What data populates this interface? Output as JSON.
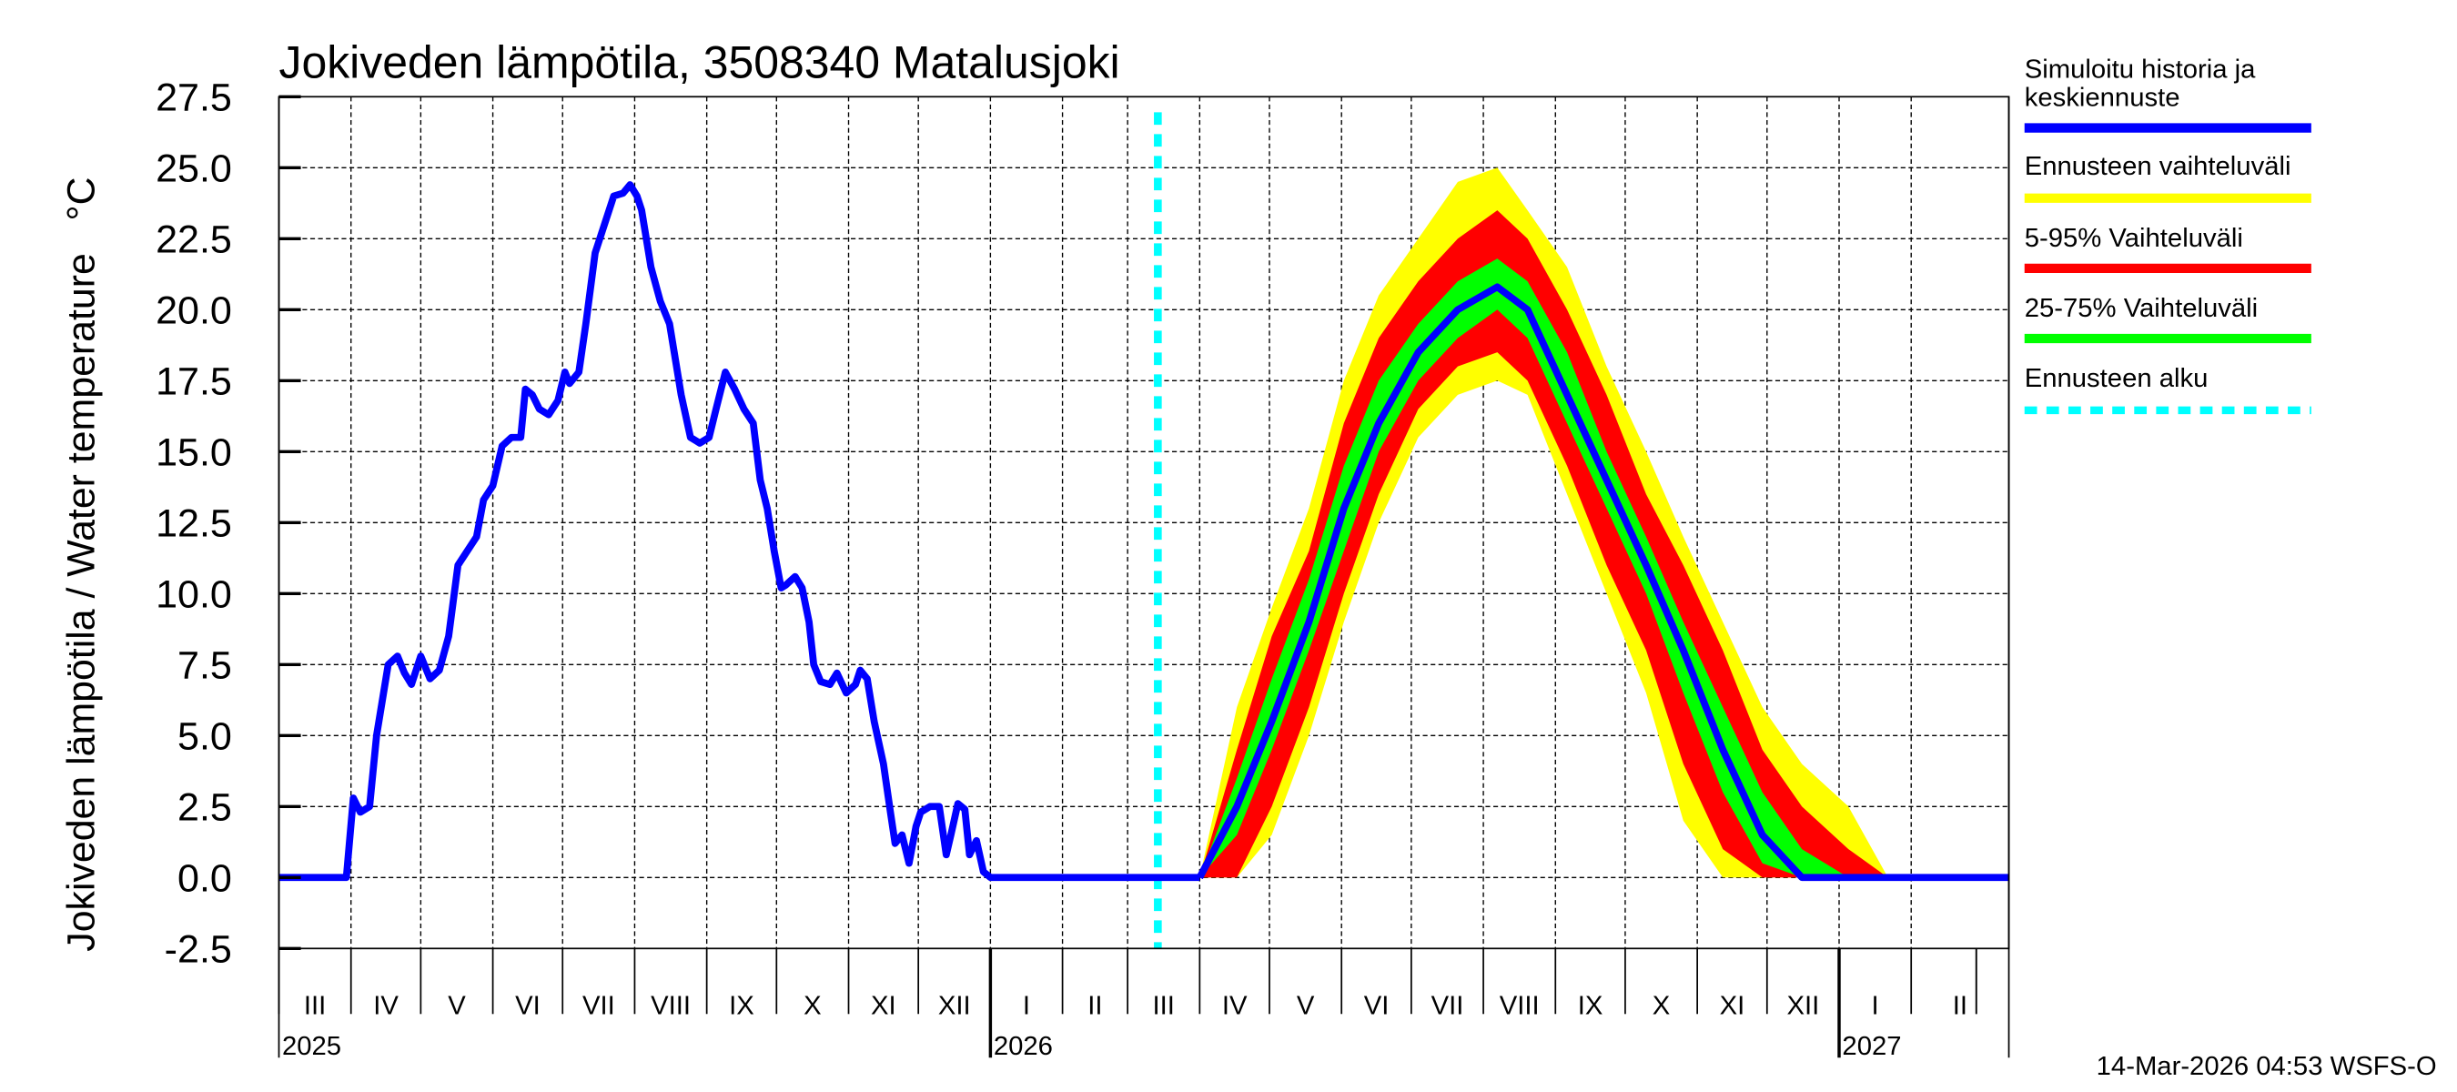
{
  "chart_data": {
    "type": "line",
    "title": "Jokiveden lämpötila, 3508340 Matalusjoki",
    "ylabel": "Jokiveden lämpötila / Water temperature   °C",
    "xlabel": "",
    "xlim": [
      "2025-03-01",
      "2027-03-15"
    ],
    "ylim": [
      -2.5,
      27.5
    ],
    "yticks": [
      "-2.5",
      "0.0",
      "2.5",
      "5.0",
      "7.5",
      "10.0",
      "12.5",
      "15.0",
      "17.5",
      "20.0",
      "22.5",
      "25.0",
      "27.5"
    ],
    "grid": true,
    "legend_placement": "right",
    "month_labels": [
      {
        "label": "III",
        "month": "2025-03"
      },
      {
        "label": "IV",
        "month": "2025-04"
      },
      {
        "label": "V",
        "month": "2025-05"
      },
      {
        "label": "VI",
        "month": "2025-06"
      },
      {
        "label": "VII",
        "month": "2025-07"
      },
      {
        "label": "VIII",
        "month": "2025-08"
      },
      {
        "label": "IX",
        "month": "2025-09"
      },
      {
        "label": "X",
        "month": "2025-10"
      },
      {
        "label": "XI",
        "month": "2025-11"
      },
      {
        "label": "XII",
        "month": "2025-12"
      },
      {
        "label": "I",
        "month": "2026-01"
      },
      {
        "label": "II",
        "month": "2026-02"
      },
      {
        "label": "III",
        "month": "2026-03"
      },
      {
        "label": "IV",
        "month": "2026-04"
      },
      {
        "label": "V",
        "month": "2026-05"
      },
      {
        "label": "VI",
        "month": "2026-06"
      },
      {
        "label": "VII",
        "month": "2026-07"
      },
      {
        "label": "VIII",
        "month": "2026-08"
      },
      {
        "label": "IX",
        "month": "2026-09"
      },
      {
        "label": "X",
        "month": "2026-10"
      },
      {
        "label": "XI",
        "month": "2026-11"
      },
      {
        "label": "XII",
        "month": "2026-12"
      },
      {
        "label": "I",
        "month": "2027-01"
      },
      {
        "label": "II",
        "month": "2027-02"
      }
    ],
    "year_labels": [
      {
        "label": "2025",
        "date": "2025-03-01"
      },
      {
        "label": "2026",
        "date": "2026-01-01"
      },
      {
        "label": "2027",
        "date": "2027-01-01"
      }
    ],
    "forecast_start": "2026-03-14",
    "colors": {
      "history": "#0000ff",
      "range": "#ffff00",
      "p5_95": "#ff0000",
      "p25_75": "#00ff00",
      "forecast_start": "#00ffff"
    },
    "legend": [
      {
        "label": "Simuloitu historia ja keskiennuste",
        "lines": [
          "Simuloitu historia ja",
          "keskiennuste"
        ],
        "color": "#0000ff",
        "style": "solid"
      },
      {
        "label": "Ennusteen vaihteluväli",
        "lines": [
          "Ennusteen vaihteluväli"
        ],
        "color": "#ffff00",
        "style": "solid"
      },
      {
        "label": "5-95% Vaihteluväli",
        "lines": [
          "5-95% Vaihteluväli"
        ],
        "color": "#ff0000",
        "style": "solid"
      },
      {
        "label": "25-75% Vaihteluväli",
        "lines": [
          "25-75% Vaihteluväli"
        ],
        "color": "#00ff00",
        "style": "solid"
      },
      {
        "label": "Ennusteen alku",
        "lines": [
          "Ennusteen alku"
        ],
        "color": "#00ffff",
        "style": "dashed"
      }
    ],
    "history": [
      [
        "2025-03-01",
        0
      ],
      [
        "2025-03-30",
        0
      ],
      [
        "2025-04-02",
        2.8
      ],
      [
        "2025-04-05",
        2.3
      ],
      [
        "2025-04-09",
        2.5
      ],
      [
        "2025-04-12",
        5.0
      ],
      [
        "2025-04-17",
        7.5
      ],
      [
        "2025-04-21",
        7.8
      ],
      [
        "2025-04-24",
        7.2
      ],
      [
        "2025-04-27",
        6.8
      ],
      [
        "2025-05-01",
        7.8
      ],
      [
        "2025-05-05",
        7.0
      ],
      [
        "2025-05-09",
        7.3
      ],
      [
        "2025-05-13",
        8.5
      ],
      [
        "2025-05-17",
        11.0
      ],
      [
        "2025-05-21",
        11.5
      ],
      [
        "2025-05-25",
        12.0
      ],
      [
        "2025-05-28",
        13.3
      ],
      [
        "2025-06-01",
        13.8
      ],
      [
        "2025-06-05",
        15.2
      ],
      [
        "2025-06-09",
        15.5
      ],
      [
        "2025-06-13",
        15.5
      ],
      [
        "2025-06-15",
        17.2
      ],
      [
        "2025-06-18",
        17.0
      ],
      [
        "2025-06-21",
        16.5
      ],
      [
        "2025-06-25",
        16.3
      ],
      [
        "2025-06-29",
        16.8
      ],
      [
        "2025-07-02",
        17.8
      ],
      [
        "2025-07-04",
        17.4
      ],
      [
        "2025-07-08",
        17.8
      ],
      [
        "2025-07-11",
        19.5
      ],
      [
        "2025-07-15",
        22.0
      ],
      [
        "2025-07-19",
        23.0
      ],
      [
        "2025-07-23",
        24.0
      ],
      [
        "2025-07-27",
        24.1
      ],
      [
        "2025-07-30",
        24.4
      ],
      [
        "2025-08-02",
        24.0
      ],
      [
        "2025-08-04",
        23.5
      ],
      [
        "2025-08-08",
        21.5
      ],
      [
        "2025-08-12",
        20.3
      ],
      [
        "2025-08-16",
        19.5
      ],
      [
        "2025-08-21",
        17.0
      ],
      [
        "2025-08-25",
        15.5
      ],
      [
        "2025-08-29",
        15.3
      ],
      [
        "2025-09-02",
        15.5
      ],
      [
        "2025-09-05",
        16.5
      ],
      [
        "2025-09-09",
        17.8
      ],
      [
        "2025-09-13",
        17.2
      ],
      [
        "2025-09-17",
        16.5
      ],
      [
        "2025-09-21",
        16.0
      ],
      [
        "2025-09-24",
        14.0
      ],
      [
        "2025-09-27",
        13.0
      ],
      [
        "2025-09-30",
        11.5
      ],
      [
        "2025-10-03",
        10.2
      ],
      [
        "2025-10-05",
        10.3
      ],
      [
        "2025-10-09",
        10.6
      ],
      [
        "2025-10-12",
        10.2
      ],
      [
        "2025-10-15",
        9.0
      ],
      [
        "2025-10-17",
        7.5
      ],
      [
        "2025-10-20",
        6.9
      ],
      [
        "2025-10-24",
        6.8
      ],
      [
        "2025-10-27",
        7.2
      ],
      [
        "2025-10-31",
        6.5
      ],
      [
        "2025-11-04",
        6.8
      ],
      [
        "2025-11-06",
        7.3
      ],
      [
        "2025-11-09",
        7.0
      ],
      [
        "2025-11-12",
        5.5
      ],
      [
        "2025-11-16",
        4.0
      ],
      [
        "2025-11-19",
        2.3
      ],
      [
        "2025-11-21",
        1.2
      ],
      [
        "2025-11-24",
        1.5
      ],
      [
        "2025-11-27",
        0.5
      ],
      [
        "2025-11-30",
        1.8
      ],
      [
        "2025-12-02",
        2.3
      ],
      [
        "2025-12-06",
        2.5
      ],
      [
        "2025-12-10",
        2.5
      ],
      [
        "2025-12-13",
        0.8
      ],
      [
        "2025-12-15",
        1.5
      ],
      [
        "2025-12-18",
        2.6
      ],
      [
        "2025-12-21",
        2.4
      ],
      [
        "2025-12-23",
        0.8
      ],
      [
        "2025-12-26",
        1.3
      ],
      [
        "2025-12-29",
        0.2
      ],
      [
        "2026-01-01",
        0
      ],
      [
        "2026-04-01",
        0
      ]
    ],
    "forecast": {
      "columns": [
        "date",
        "median",
        "p25",
        "p75",
        "p5",
        "p95",
        "min",
        "max"
      ],
      "rows": [
        [
          "2026-04-01",
          0,
          0,
          0,
          0,
          0,
          0,
          0
        ],
        [
          "2026-04-17",
          2.5,
          1.5,
          3.5,
          0,
          4.5,
          0,
          6
        ],
        [
          "2026-05-02",
          5.5,
          4.5,
          7,
          2.5,
          8.5,
          1.5,
          9.5
        ],
        [
          "2026-05-18",
          9,
          8,
          10.5,
          6,
          11.5,
          5,
          13
        ],
        [
          "2026-06-02",
          13,
          11.5,
          14.5,
          10,
          16,
          9,
          17.5
        ],
        [
          "2026-06-17",
          16,
          15,
          17.5,
          13.5,
          19,
          12.5,
          20.5
        ],
        [
          "2026-07-04",
          18.5,
          17.5,
          19.5,
          16.5,
          21,
          15.5,
          22.5
        ],
        [
          "2026-07-21",
          20,
          19,
          21,
          18,
          22.5,
          17,
          24.5
        ],
        [
          "2026-08-07",
          20.8,
          20,
          21.8,
          18.5,
          23.5,
          17.5,
          25
        ],
        [
          "2026-08-20",
          20,
          19,
          21,
          17.5,
          22.5,
          17,
          23.5
        ],
        [
          "2026-09-06",
          17,
          16,
          18.5,
          14.5,
          20,
          13.5,
          21.5
        ],
        [
          "2026-09-23",
          14,
          13,
          15,
          11,
          17,
          10,
          18
        ],
        [
          "2026-10-10",
          11,
          10,
          12,
          8,
          13.5,
          6.5,
          15
        ],
        [
          "2026-10-26",
          8,
          6.5,
          9,
          4,
          11,
          2,
          12
        ],
        [
          "2026-11-12",
          4.5,
          3,
          6,
          1,
          8,
          0,
          9
        ],
        [
          "2026-11-29",
          1.5,
          0.5,
          3,
          0,
          4.5,
          0,
          6
        ],
        [
          "2026-12-16",
          0,
          0,
          1,
          0,
          2.5,
          0,
          4
        ],
        [
          "2027-01-05",
          0,
          0,
          0,
          0,
          1,
          0,
          2.5
        ],
        [
          "2027-01-22",
          0,
          0,
          0,
          0,
          0,
          0,
          0
        ],
        [
          "2027-03-15",
          0,
          0,
          0,
          0,
          0,
          0,
          0
        ]
      ]
    }
  },
  "footer": "14-Mar-2026 04:53 WSFS-O"
}
